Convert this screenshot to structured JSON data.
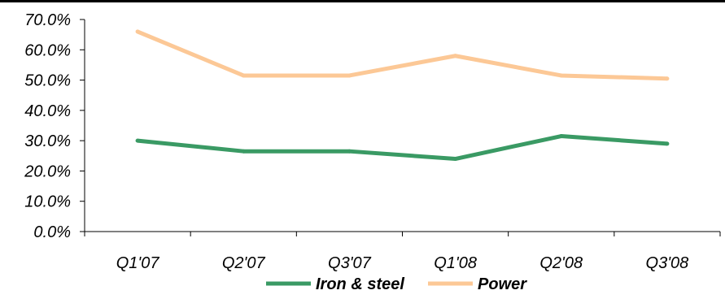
{
  "chart_data": {
    "type": "line",
    "categories": [
      "Q1'07",
      "Q2'07",
      "Q3'07",
      "Q1'08",
      "Q2'08",
      "Q3'08"
    ],
    "series": [
      {
        "name": "Iron & steel",
        "values": [
          30.0,
          26.5,
          26.5,
          24.0,
          31.5,
          29.0
        ],
        "color": "#3a9a64"
      },
      {
        "name": "Power",
        "values": [
          66.0,
          51.5,
          51.5,
          58.0,
          51.5,
          50.5
        ],
        "color": "#fcc896"
      }
    ],
    "ylim": [
      0,
      70
    ],
    "yticks": [
      0,
      10,
      20,
      30,
      40,
      50,
      60,
      70
    ],
    "ytick_labels": [
      "0.0%",
      "10.0%",
      "20.0%",
      "30.0%",
      "40.0%",
      "50.0%",
      "60.0%",
      "70.0%"
    ],
    "grid": false,
    "legend_position": "bottom-center",
    "title": "",
    "xlabel": "",
    "ylabel": ""
  }
}
